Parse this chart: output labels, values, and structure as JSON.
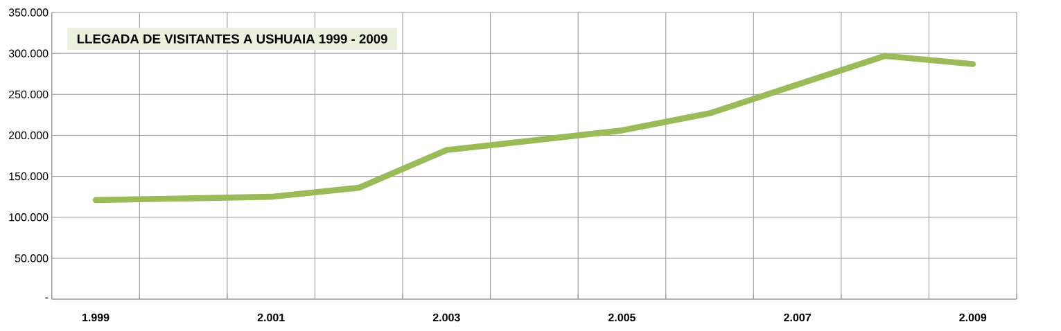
{
  "chart_data": {
    "type": "line",
    "title": "LLEGADA DE VISITANTES A USHUAIA    1999 - 2009",
    "categories": [
      "1.999",
      null,
      "2.001",
      null,
      "2.003",
      null,
      "2.005",
      null,
      "2.007",
      null,
      "2.009"
    ],
    "series": [
      {
        "color": "#9bbb59",
        "values": [
          121000,
          123000,
          125000,
          136000,
          182000,
          194000,
          206000,
          227000,
          262000,
          297000,
          287000
        ]
      }
    ],
    "ylim": [
      0,
      350000
    ],
    "yticks": [
      {
        "value": 0,
        "label": "-"
      },
      {
        "value": 50000,
        "label": "50.000"
      },
      {
        "value": 100000,
        "label": "100.000"
      },
      {
        "value": 150000,
        "label": "150.000"
      },
      {
        "value": 200000,
        "label": "200.000"
      },
      {
        "value": 250000,
        "label": "250.000"
      },
      {
        "value": 300000,
        "label": "300.000"
      },
      {
        "value": 350000,
        "label": "350.000"
      }
    ],
    "grid": true,
    "marker": "none",
    "line_style": "solid"
  }
}
